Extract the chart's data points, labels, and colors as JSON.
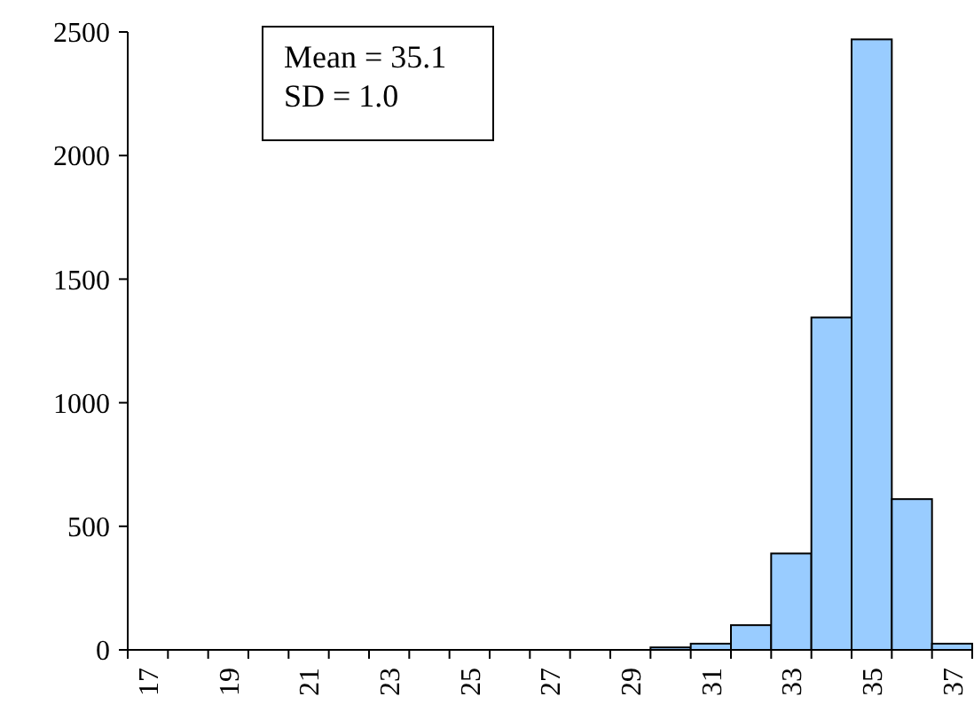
{
  "chart_data": {
    "type": "bar",
    "categories": [
      "17",
      null,
      "19",
      null,
      "21",
      null,
      "23",
      null,
      "25",
      null,
      "27",
      null,
      "29",
      null,
      "31",
      null,
      "33",
      null,
      "35",
      null,
      "37"
    ],
    "values": [
      0,
      0,
      0,
      0,
      0,
      0,
      0,
      0,
      0,
      0,
      0,
      0,
      0,
      10,
      25,
      100,
      390,
      1345,
      2470,
      610,
      25
    ],
    "color": "#99ccff",
    "ylim": [
      0,
      2500
    ],
    "yticks": [
      0,
      500,
      1000,
      1500,
      2000,
      2500
    ],
    "annotations": [
      "Mean = 35.1",
      "SD = 1.0"
    ]
  }
}
